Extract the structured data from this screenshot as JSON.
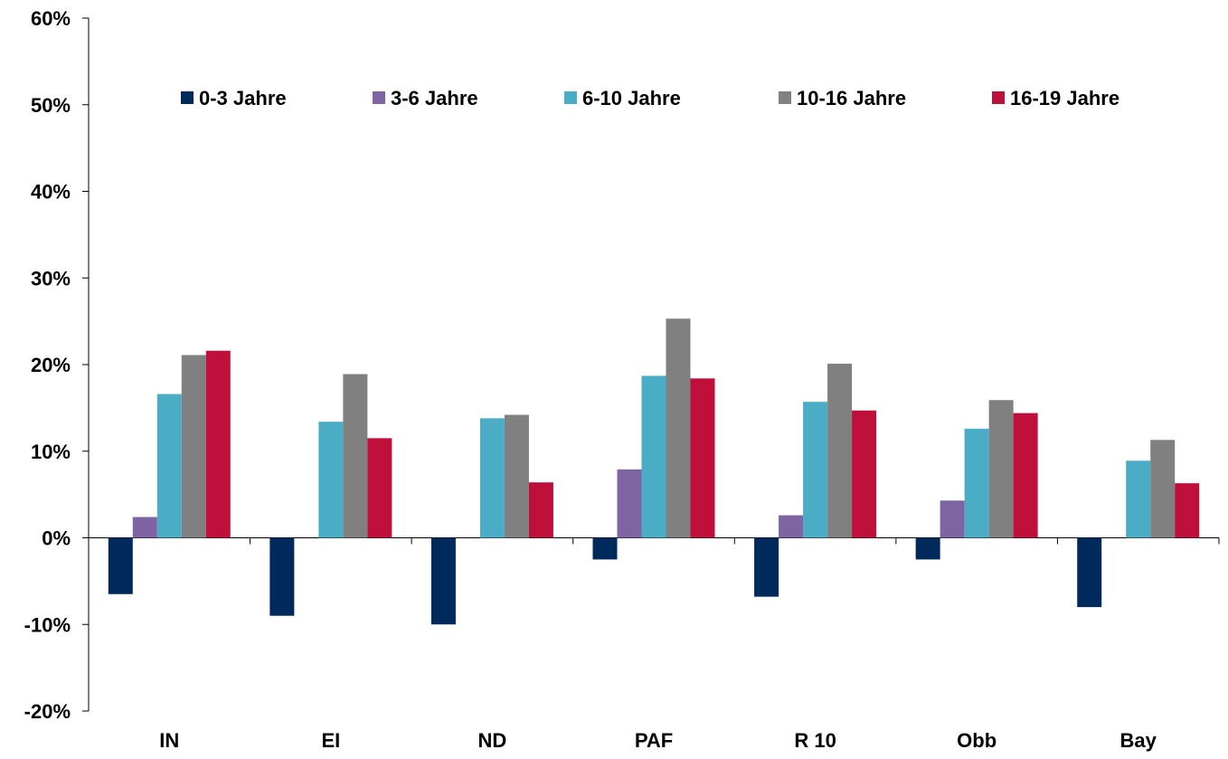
{
  "chart_data": {
    "type": "bar",
    "title": "",
    "xlabel": "",
    "ylabel": "",
    "categories": [
      "IN",
      "EI",
      "ND",
      "PAF",
      "R 10",
      "Obb",
      "Bay"
    ],
    "series": [
      {
        "name": "0-3 Jahre",
        "color": "#002A5C",
        "values": [
          -6.5,
          -9.0,
          -10.0,
          -2.5,
          -6.8,
          -2.5,
          -8.0
        ]
      },
      {
        "name": "3-6 Jahre",
        "color": "#7E64A2",
        "values": [
          2.4,
          0,
          0,
          7.9,
          2.6,
          4.3,
          0
        ]
      },
      {
        "name": "6-10 Jahre",
        "color": "#4BACC6",
        "values": [
          16.6,
          13.4,
          13.8,
          18.7,
          15.7,
          12.6,
          8.9
        ]
      },
      {
        "name": "10-16 Jahre",
        "color": "#808080",
        "values": [
          21.1,
          18.9,
          14.2,
          25.3,
          20.1,
          15.9,
          11.3
        ]
      },
      {
        "name": "16-19 Jahre",
        "color": "#BF0F3B",
        "values": [
          21.6,
          11.5,
          6.4,
          18.4,
          14.7,
          14.4,
          6.3
        ]
      }
    ],
    "ylim": [
      -20,
      60
    ],
    "yticks": [
      -20,
      -10,
      0,
      10,
      20,
      30,
      40,
      50,
      60
    ],
    "ytick_labels": [
      "-20%",
      "-10%",
      "0%",
      "10%",
      "20%",
      "30%",
      "40%",
      "50%",
      "60%"
    ],
    "grid": false,
    "legend_position": "top"
  }
}
